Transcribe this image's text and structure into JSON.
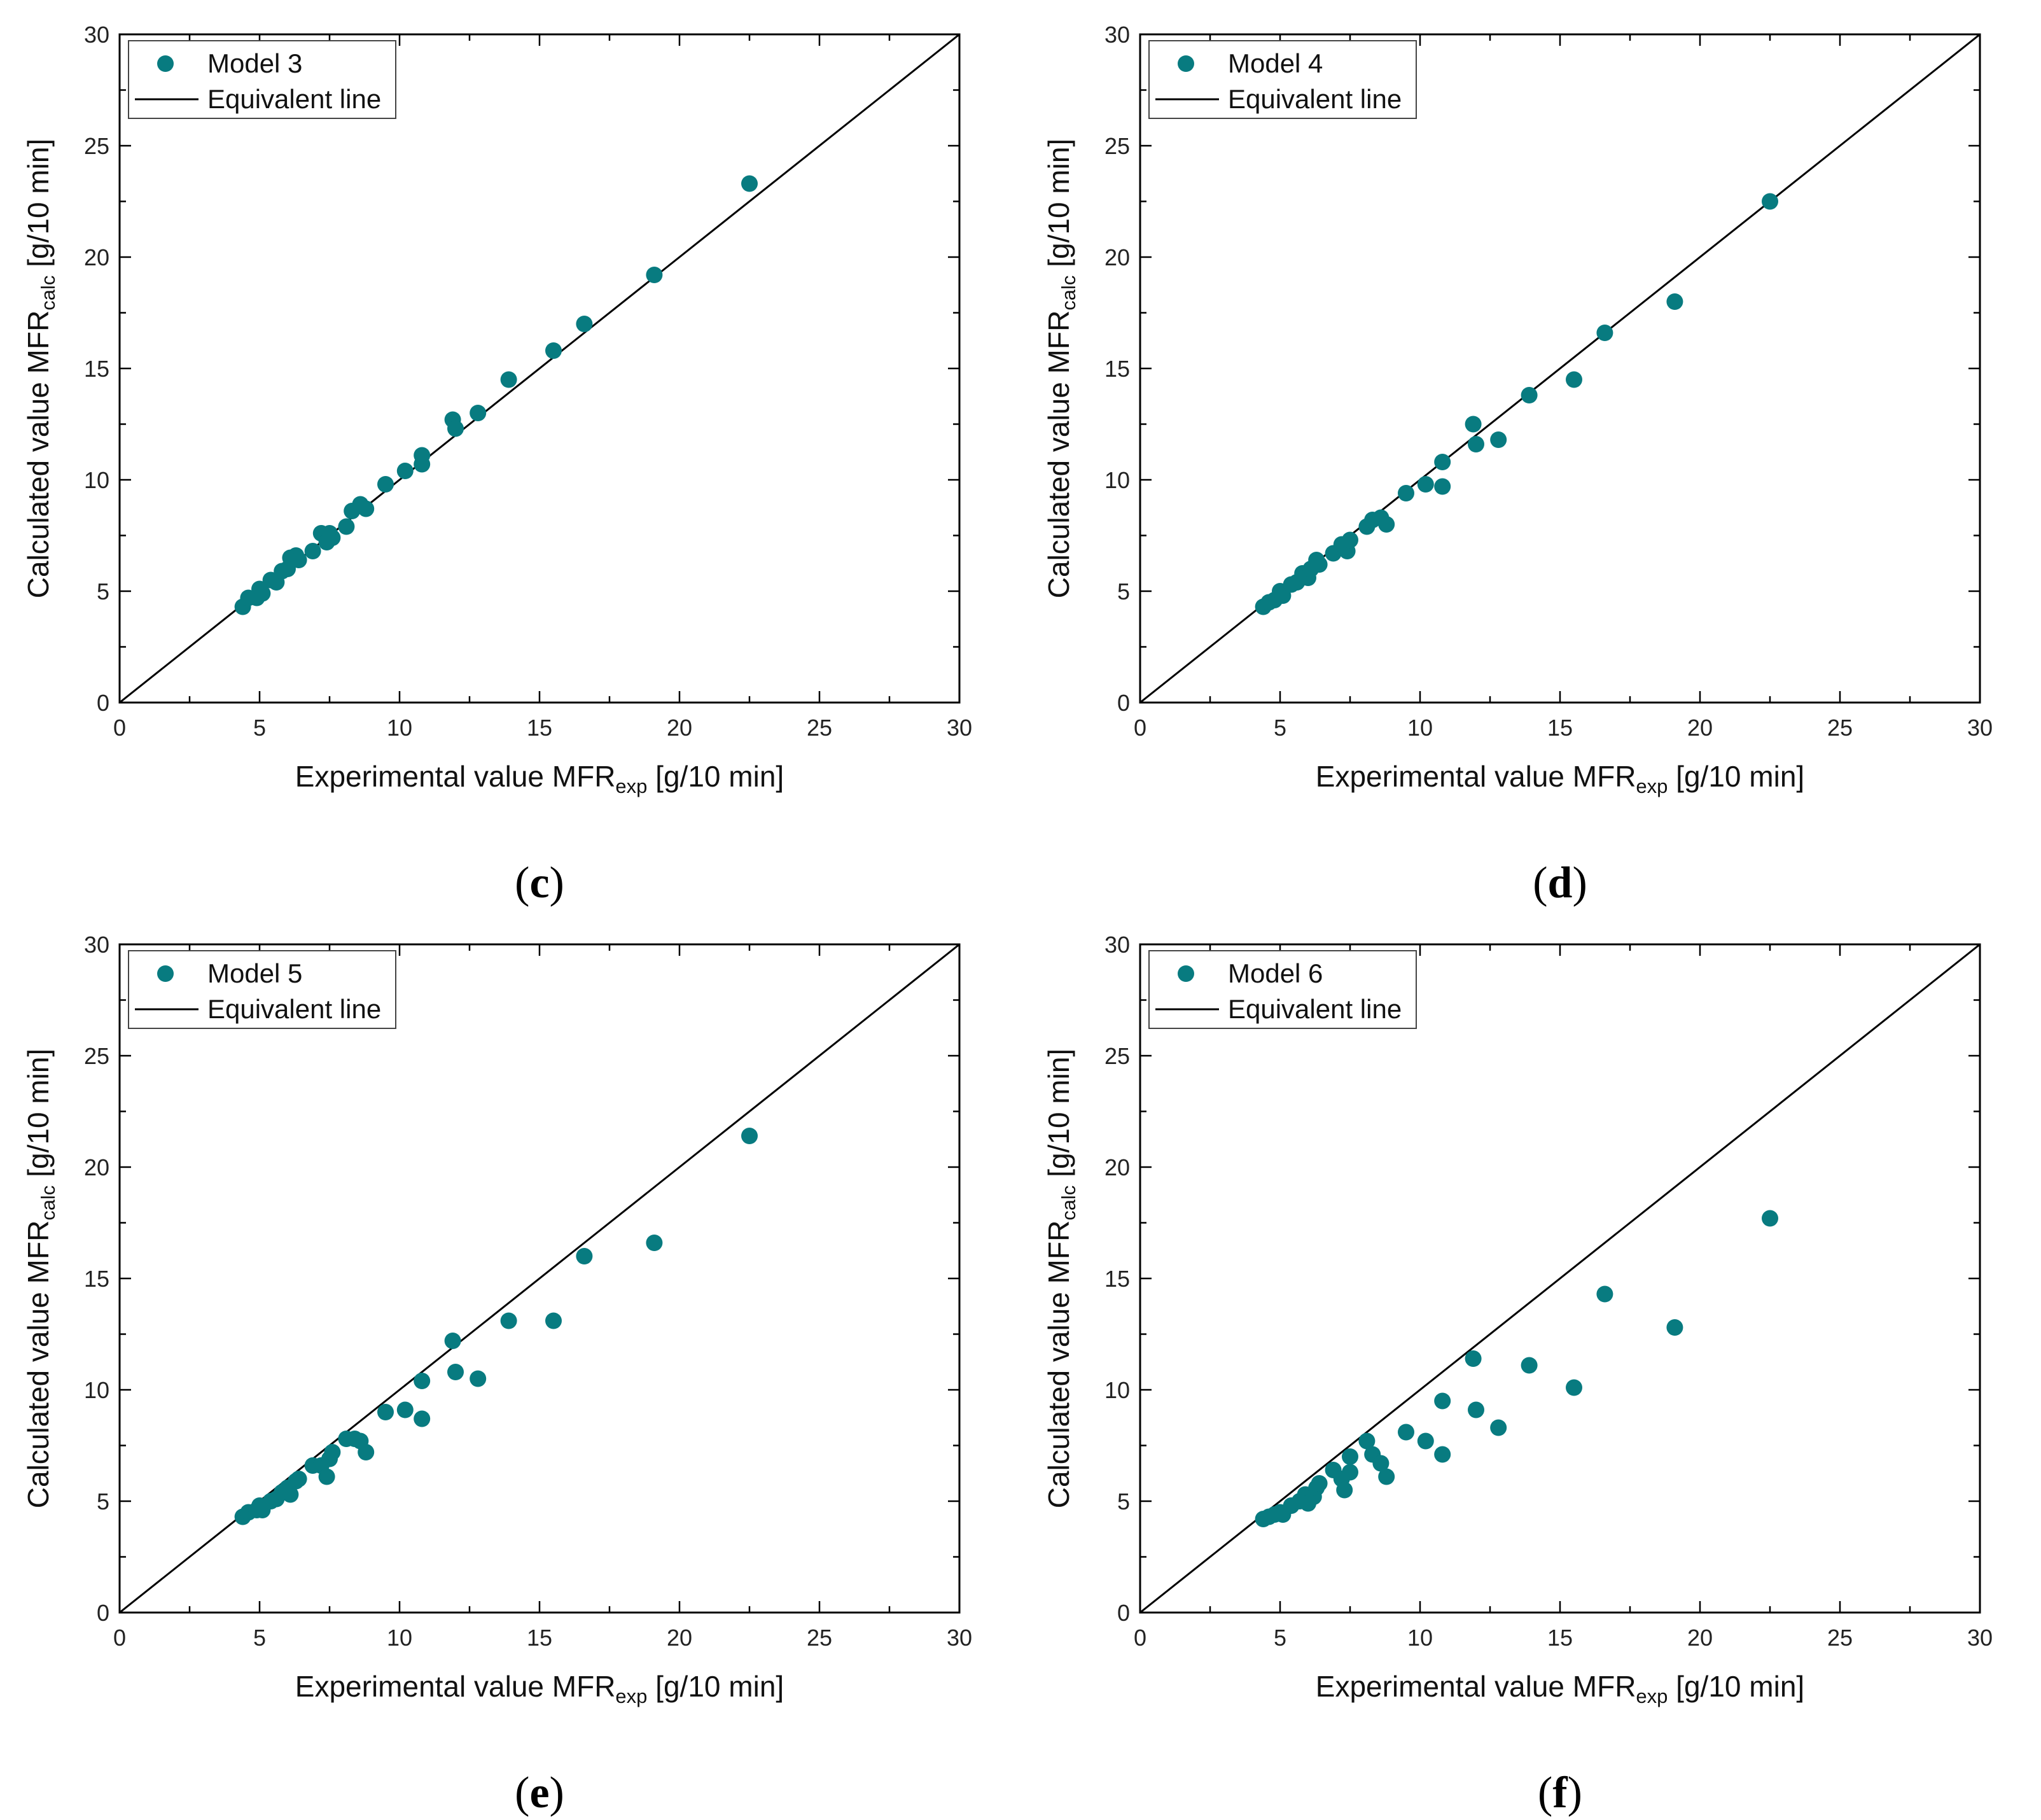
{
  "colors": {
    "marker": "#087b80",
    "line": "#000000",
    "axis": "#000000"
  },
  "chart_data": [
    {
      "type": "scatter",
      "panel": "c",
      "caption": {
        "open": "(",
        "letter": "c",
        "close": ")"
      },
      "xlabel": {
        "main": "Experimental value MFR",
        "sub": "exp",
        "unit": " [g/10 min]"
      },
      "ylabel": {
        "main": "Calculated value MFR",
        "sub": "calc",
        "unit": " [g/10 min]"
      },
      "xlim": [
        0,
        30
      ],
      "ylim": [
        0,
        30
      ],
      "xticks": [
        "0",
        "5",
        "10",
        "15",
        "20",
        "25",
        "30"
      ],
      "yticks": [
        "0",
        "5",
        "10",
        "15",
        "20",
        "25",
        "30"
      ],
      "legend": {
        "position": "top-left",
        "series_label": "Model 3",
        "line_label": "Equivalent line"
      },
      "series": [
        {
          "name": "Model 3",
          "points": [
            [
              4.4,
              4.3
            ],
            [
              4.6,
              4.7
            ],
            [
              4.9,
              4.7
            ],
            [
              5.0,
              5.1
            ],
            [
              5.1,
              4.9
            ],
            [
              5.4,
              5.5
            ],
            [
              5.6,
              5.4
            ],
            [
              5.8,
              5.9
            ],
            [
              6.0,
              6.0
            ],
            [
              6.1,
              6.5
            ],
            [
              6.3,
              6.6
            ],
            [
              6.4,
              6.4
            ],
            [
              6.9,
              6.8
            ],
            [
              7.2,
              7.6
            ],
            [
              7.4,
              7.2
            ],
            [
              7.5,
              7.6
            ],
            [
              7.6,
              7.4
            ],
            [
              8.1,
              7.9
            ],
            [
              8.3,
              8.6
            ],
            [
              8.6,
              8.9
            ],
            [
              8.8,
              8.7
            ],
            [
              9.5,
              9.8
            ],
            [
              10.2,
              10.4
            ],
            [
              10.8,
              10.7
            ],
            [
              10.8,
              11.1
            ],
            [
              11.9,
              12.7
            ],
            [
              12.0,
              12.3
            ],
            [
              12.8,
              13.0
            ],
            [
              13.9,
              14.5
            ],
            [
              15.5,
              15.8
            ],
            [
              16.6,
              17.0
            ],
            [
              19.1,
              19.2
            ],
            [
              22.5,
              23.3
            ]
          ]
        }
      ],
      "equivalent_line": [
        [
          0,
          0
        ],
        [
          30,
          30
        ]
      ]
    },
    {
      "type": "scatter",
      "panel": "d",
      "caption": {
        "open": "(",
        "letter": "d",
        "close": ")"
      },
      "xlabel": {
        "main": "Experimental value MFR",
        "sub": "exp",
        "unit": " [g/10 min]"
      },
      "ylabel": {
        "main": "Calculated value MFR",
        "sub": "calc",
        "unit": " [g/10 min]"
      },
      "xlim": [
        0,
        30
      ],
      "ylim": [
        0,
        30
      ],
      "xticks": [
        "0",
        "5",
        "10",
        "15",
        "20",
        "25",
        "30"
      ],
      "yticks": [
        "0",
        "5",
        "10",
        "15",
        "20",
        "25",
        "30"
      ],
      "legend": {
        "position": "top-left",
        "series_label": "Model 4",
        "line_label": "Equivalent line"
      },
      "series": [
        {
          "name": "Model 4",
          "points": [
            [
              4.4,
              4.3
            ],
            [
              4.6,
              4.5
            ],
            [
              4.8,
              4.6
            ],
            [
              5.0,
              5.0
            ],
            [
              5.1,
              4.8
            ],
            [
              5.4,
              5.3
            ],
            [
              5.6,
              5.4
            ],
            [
              5.8,
              5.8
            ],
            [
              6.0,
              5.6
            ],
            [
              6.1,
              6.0
            ],
            [
              6.3,
              6.4
            ],
            [
              6.4,
              6.2
            ],
            [
              6.9,
              6.7
            ],
            [
              7.2,
              7.1
            ],
            [
              7.4,
              6.8
            ],
            [
              7.5,
              7.3
            ],
            [
              8.1,
              7.9
            ],
            [
              8.3,
              8.2
            ],
            [
              8.6,
              8.3
            ],
            [
              8.8,
              8.0
            ],
            [
              9.5,
              9.4
            ],
            [
              10.2,
              9.8
            ],
            [
              10.8,
              10.8
            ],
            [
              10.8,
              9.7
            ],
            [
              11.9,
              12.5
            ],
            [
              12.0,
              11.6
            ],
            [
              12.8,
              11.8
            ],
            [
              13.9,
              13.8
            ],
            [
              15.5,
              14.5
            ],
            [
              16.6,
              16.6
            ],
            [
              19.1,
              18.0
            ],
            [
              22.5,
              22.5
            ]
          ]
        }
      ],
      "equivalent_line": [
        [
          0,
          0
        ],
        [
          30,
          30
        ]
      ]
    },
    {
      "type": "scatter",
      "panel": "e",
      "caption": {
        "open": "(",
        "letter": "e",
        "close": ")"
      },
      "xlabel": {
        "main": "Experimental value MFR",
        "sub": "exp",
        "unit": " [g/10 min]"
      },
      "ylabel": {
        "main": "Calculated value MFR",
        "sub": "calc",
        "unit": " [g/10 min]"
      },
      "xlim": [
        0,
        30
      ],
      "ylim": [
        0,
        30
      ],
      "xticks": [
        "0",
        "5",
        "10",
        "15",
        "20",
        "25",
        "30"
      ],
      "yticks": [
        "0",
        "5",
        "10",
        "15",
        "20",
        "25",
        "30"
      ],
      "legend": {
        "position": "top-left",
        "series_label": "Model 5",
        "line_label": "Equivalent line"
      },
      "series": [
        {
          "name": "Model 5",
          "points": [
            [
              4.4,
              4.3
            ],
            [
              4.6,
              4.5
            ],
            [
              4.9,
              4.6
            ],
            [
              5.0,
              4.8
            ],
            [
              5.1,
              4.6
            ],
            [
              5.4,
              5.0
            ],
            [
              5.6,
              5.1
            ],
            [
              5.8,
              5.4
            ],
            [
              6.0,
              5.6
            ],
            [
              6.1,
              5.3
            ],
            [
              6.3,
              5.9
            ],
            [
              6.4,
              6.0
            ],
            [
              6.9,
              6.6
            ],
            [
              7.2,
              6.6
            ],
            [
              7.4,
              6.1
            ],
            [
              7.5,
              6.9
            ],
            [
              7.6,
              7.2
            ],
            [
              8.1,
              7.8
            ],
            [
              8.4,
              7.8
            ],
            [
              8.6,
              7.7
            ],
            [
              8.8,
              7.2
            ],
            [
              9.5,
              9.0
            ],
            [
              10.2,
              9.1
            ],
            [
              10.8,
              8.7
            ],
            [
              10.8,
              10.4
            ],
            [
              11.9,
              12.2
            ],
            [
              12.0,
              10.8
            ],
            [
              12.8,
              10.5
            ],
            [
              13.9,
              13.1
            ],
            [
              15.5,
              13.1
            ],
            [
              16.6,
              16.0
            ],
            [
              19.1,
              16.6
            ],
            [
              22.5,
              21.4
            ]
          ]
        }
      ],
      "equivalent_line": [
        [
          0,
          0
        ],
        [
          30,
          30
        ]
      ]
    },
    {
      "type": "scatter",
      "panel": "f",
      "caption": {
        "open": "(",
        "letter": "f",
        "close": ")"
      },
      "xlabel": {
        "main": "Experimental value MFR",
        "sub": "exp",
        "unit": " [g/10 min]"
      },
      "ylabel": {
        "main": "Calculated value MFR",
        "sub": "calc",
        "unit": " [g/10 min]"
      },
      "xlim": [
        0,
        30
      ],
      "ylim": [
        0,
        30
      ],
      "xticks": [
        "0",
        "5",
        "10",
        "15",
        "20",
        "25",
        "30"
      ],
      "yticks": [
        "0",
        "5",
        "10",
        "15",
        "20",
        "25",
        "30"
      ],
      "legend": {
        "position": "top-left",
        "series_label": "Model 6",
        "line_label": "Equivalent line"
      },
      "series": [
        {
          "name": "Model 6",
          "points": [
            [
              4.4,
              4.2
            ],
            [
              4.6,
              4.3
            ],
            [
              4.8,
              4.4
            ],
            [
              5.0,
              4.5
            ],
            [
              5.1,
              4.4
            ],
            [
              5.4,
              4.8
            ],
            [
              5.7,
              5.0
            ],
            [
              5.9,
              5.3
            ],
            [
              6.0,
              4.9
            ],
            [
              6.2,
              5.2
            ],
            [
              6.3,
              5.6
            ],
            [
              6.4,
              5.8
            ],
            [
              6.9,
              6.4
            ],
            [
              7.2,
              6.0
            ],
            [
              7.3,
              5.5
            ],
            [
              7.5,
              6.3
            ],
            [
              7.5,
              7.0
            ],
            [
              8.1,
              7.7
            ],
            [
              8.3,
              7.1
            ],
            [
              8.6,
              6.7
            ],
            [
              8.8,
              6.1
            ],
            [
              9.5,
              8.1
            ],
            [
              10.2,
              7.7
            ],
            [
              10.8,
              7.1
            ],
            [
              10.8,
              9.5
            ],
            [
              11.9,
              11.4
            ],
            [
              12.0,
              9.1
            ],
            [
              12.8,
              8.3
            ],
            [
              13.9,
              11.1
            ],
            [
              15.5,
              10.1
            ],
            [
              16.6,
              14.3
            ],
            [
              19.1,
              12.8
            ],
            [
              22.5,
              17.7
            ]
          ]
        }
      ],
      "equivalent_line": [
        [
          0,
          0
        ],
        [
          30,
          30
        ]
      ]
    }
  ]
}
